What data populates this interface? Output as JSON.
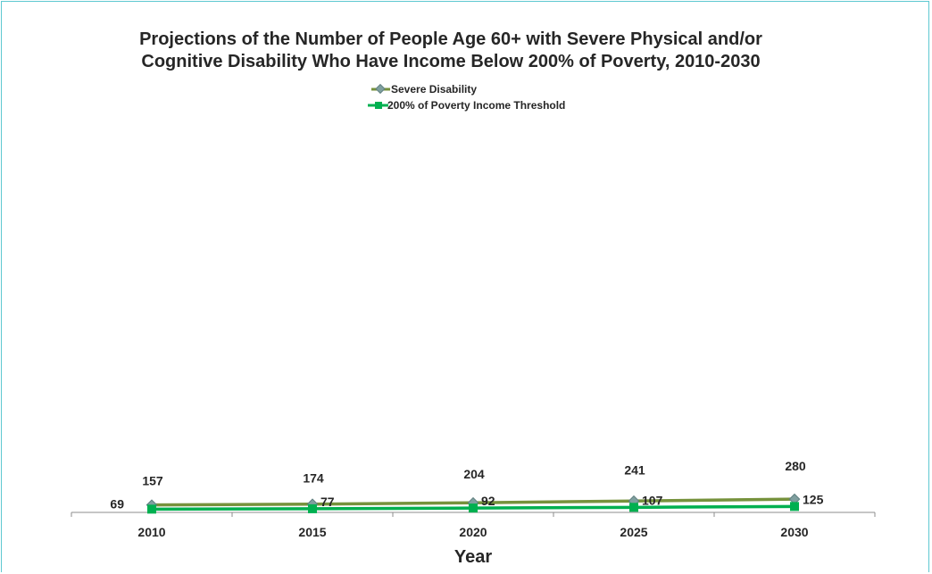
{
  "chart_data": {
    "type": "line",
    "title_lines": [
      "Projections of the Number of People Age 60+ with Severe Physical and/or",
      "Cognitive Disability Who Have Income Below 200% of Poverty, 2010-2030"
    ],
    "xlabel": "Year",
    "ylabel": "",
    "categories": [
      "2010",
      "2015",
      "2020",
      "2025",
      "2030"
    ],
    "series": [
      {
        "name": "Severe Disability",
        "values": [
          157,
          174,
          204,
          241,
          280
        ],
        "color": "#76923c",
        "marker": "diamond",
        "marker_color": "#7f9f9f"
      },
      {
        "name": "200% of Poverty Income Threshold",
        "values": [
          69,
          77,
          92,
          107,
          125
        ],
        "color": "#00b050",
        "marker": "square",
        "marker_color": "#00b050"
      }
    ],
    "grid": false,
    "legend_position": "top-center"
  }
}
